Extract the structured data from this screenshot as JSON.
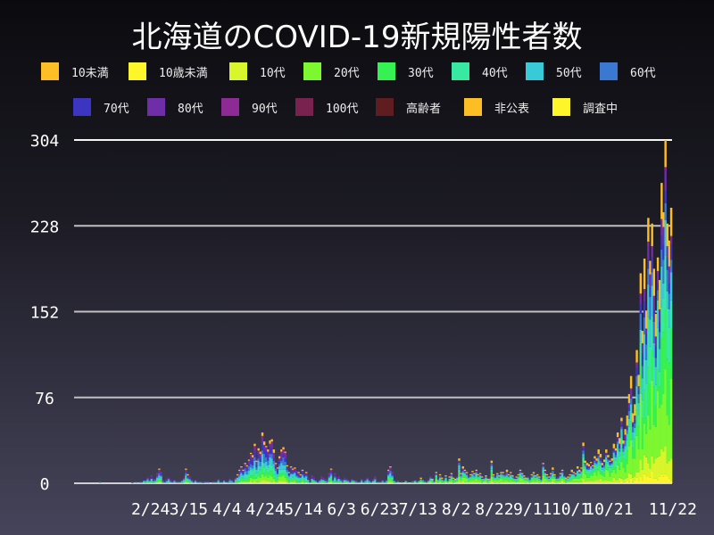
{
  "chart_data": {
    "type": "bar",
    "stacked": true,
    "title": "北海道のCOVID-19新規陽性者数",
    "xlim": [
      "1/15",
      "11/22"
    ],
    "ylim": [
      0,
      304
    ],
    "yticks": [
      0,
      76,
      152,
      228,
      304
    ],
    "xticks": [
      "2/24",
      "3/15",
      "4/4",
      "4/24",
      "5/14",
      "6/3",
      "6/23",
      "7/13",
      "8/2",
      "8/22",
      "9/11",
      "10/1",
      "10/21",
      "11/22"
    ],
    "grid": "horizontal",
    "legend_position": "top",
    "first_date": "1/28",
    "last_date": "11/22",
    "totals": [
      1,
      0,
      0,
      0,
      0,
      0,
      0,
      0,
      0,
      0,
      0,
      0,
      0,
      0,
      0,
      0,
      0,
      1,
      0,
      1,
      0,
      1,
      2,
      3,
      3,
      5,
      3,
      7,
      4,
      4,
      9,
      13,
      10,
      3,
      2,
      4,
      5,
      3,
      2,
      3,
      2,
      1,
      1,
      3,
      5,
      13,
      8,
      6,
      3,
      2,
      3,
      2,
      1,
      1,
      1,
      1,
      2,
      2,
      0,
      1,
      2,
      1,
      4,
      2,
      1,
      3,
      2,
      1,
      4,
      3,
      2,
      5,
      8,
      12,
      15,
      12,
      18,
      16,
      21,
      27,
      25,
      35,
      20,
      31,
      28,
      45,
      37,
      33,
      30,
      38,
      39,
      30,
      18,
      14,
      24,
      30,
      32,
      28,
      16,
      10,
      15,
      13,
      14,
      11,
      10,
      8,
      12,
      8,
      10,
      5,
      2,
      7,
      5,
      3,
      2,
      3,
      6,
      5,
      4,
      3,
      9,
      13,
      4,
      9,
      4,
      6,
      4,
      3,
      5,
      4,
      3,
      2,
      4,
      3,
      2,
      1,
      2,
      4,
      2,
      3,
      5,
      3,
      2,
      4,
      6,
      2,
      1,
      1,
      3,
      2,
      3,
      12,
      15,
      10,
      3,
      1,
      2,
      0,
      1,
      0,
      2,
      1,
      0,
      1,
      2,
      3,
      1,
      2,
      5,
      3,
      2,
      1,
      3,
      6,
      4,
      2,
      10,
      4,
      8,
      5,
      3,
      7,
      2,
      6,
      9,
      5,
      4,
      6,
      22,
      9,
      15,
      12,
      10,
      6,
      8,
      11,
      9,
      12,
      8,
      9,
      6,
      5,
      7,
      4,
      5,
      20,
      8,
      6,
      9,
      7,
      10,
      10,
      8,
      12,
      8,
      10,
      7,
      5,
      6,
      8,
      12,
      9,
      7,
      5,
      6,
      4,
      8,
      10,
      7,
      8,
      6,
      4,
      18,
      12,
      8,
      6,
      9,
      14,
      8,
      5,
      6,
      9,
      12,
      7,
      5,
      6,
      8,
      12,
      10,
      9,
      15,
      12,
      14,
      36,
      20,
      18,
      17,
      19,
      16,
      24,
      22,
      30,
      26,
      18,
      21,
      30,
      25,
      20,
      22,
      35,
      31,
      45,
      40,
      58,
      38,
      48,
      60,
      79,
      95,
      62,
      70,
      118,
      96,
      186,
      135,
      199,
      153,
      235,
      197,
      230,
      190,
      150,
      200,
      180,
      266,
      240,
      304,
      230,
      215,
      244
    ],
    "series": [
      {
        "name": "10未満",
        "color": "#fdbf25"
      },
      {
        "name": "10歳未満",
        "color": "#fef52a"
      },
      {
        "name": "10代",
        "color": "#d9f52b"
      },
      {
        "name": "20代",
        "color": "#7cf730"
      },
      {
        "name": "30代",
        "color": "#36f152"
      },
      {
        "name": "40代",
        "color": "#38e9a2"
      },
      {
        "name": "50代",
        "color": "#38cad9"
      },
      {
        "name": "60代",
        "color": "#3b78d1"
      },
      {
        "name": "70代",
        "color": "#3b35c1"
      },
      {
        "name": "80代",
        "color": "#6f2da9"
      },
      {
        "name": "90代",
        "color": "#8d2a95"
      },
      {
        "name": "100代",
        "color": "#79214f"
      },
      {
        "name": "高齢者",
        "color": "#5f1d21"
      },
      {
        "name": "非公表",
        "color": "#fdbd25"
      },
      {
        "name": "調査中",
        "color": "#fef52a"
      }
    ]
  }
}
